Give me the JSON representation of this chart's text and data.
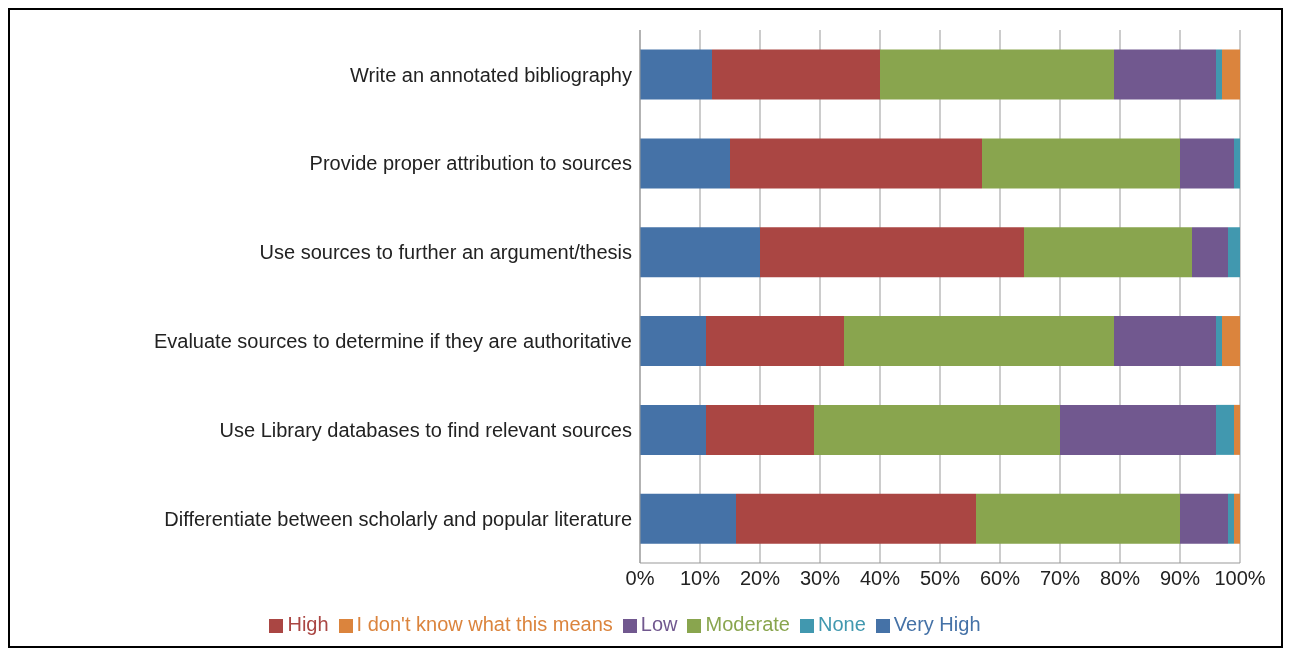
{
  "chart_data": {
    "type": "bar",
    "orientation": "horizontal",
    "stacked": true,
    "categories": [
      "Write an annotated bibliography",
      "Provide proper attribution to sources",
      "Use sources to further an argument/thesis",
      "Evaluate sources to determine if they are authoritative",
      "Use Library databases to find relevant sources",
      "Differentiate between scholarly and popular literature"
    ],
    "series": [
      {
        "name": "Very High",
        "color": "#4572a7",
        "values": [
          12,
          15,
          20,
          11,
          11,
          16
        ]
      },
      {
        "name": "High",
        "color": "#aa4643",
        "values": [
          28,
          42,
          44,
          23,
          18,
          40
        ]
      },
      {
        "name": "Moderate",
        "color": "#89a54e",
        "values": [
          39,
          33,
          28,
          45,
          41,
          34
        ]
      },
      {
        "name": "Low",
        "color": "#71588f",
        "values": [
          17,
          9,
          6,
          17,
          26,
          8
        ]
      },
      {
        "name": "None",
        "color": "#4198af",
        "values": [
          1,
          1,
          2,
          1,
          3,
          1
        ]
      },
      {
        "name": "I don't know what this means",
        "color": "#db843d",
        "values": [
          3,
          0,
          0,
          3,
          1,
          1
        ]
      }
    ],
    "xlim": [
      0,
      100
    ],
    "xticks": [
      {
        "value": 0,
        "label": "0%"
      },
      {
        "value": 10,
        "label": "10%"
      },
      {
        "value": 20,
        "label": "20%"
      },
      {
        "value": 30,
        "label": "30%"
      },
      {
        "value": 40,
        "label": "40%"
      },
      {
        "value": 50,
        "label": "50%"
      },
      {
        "value": 60,
        "label": "60%"
      },
      {
        "value": 70,
        "label": "70%"
      },
      {
        "value": 80,
        "label": "80%"
      },
      {
        "value": 90,
        "label": "90%"
      },
      {
        "value": 100,
        "label": "100%"
      }
    ],
    "grid": "x",
    "legend": "bottom"
  }
}
